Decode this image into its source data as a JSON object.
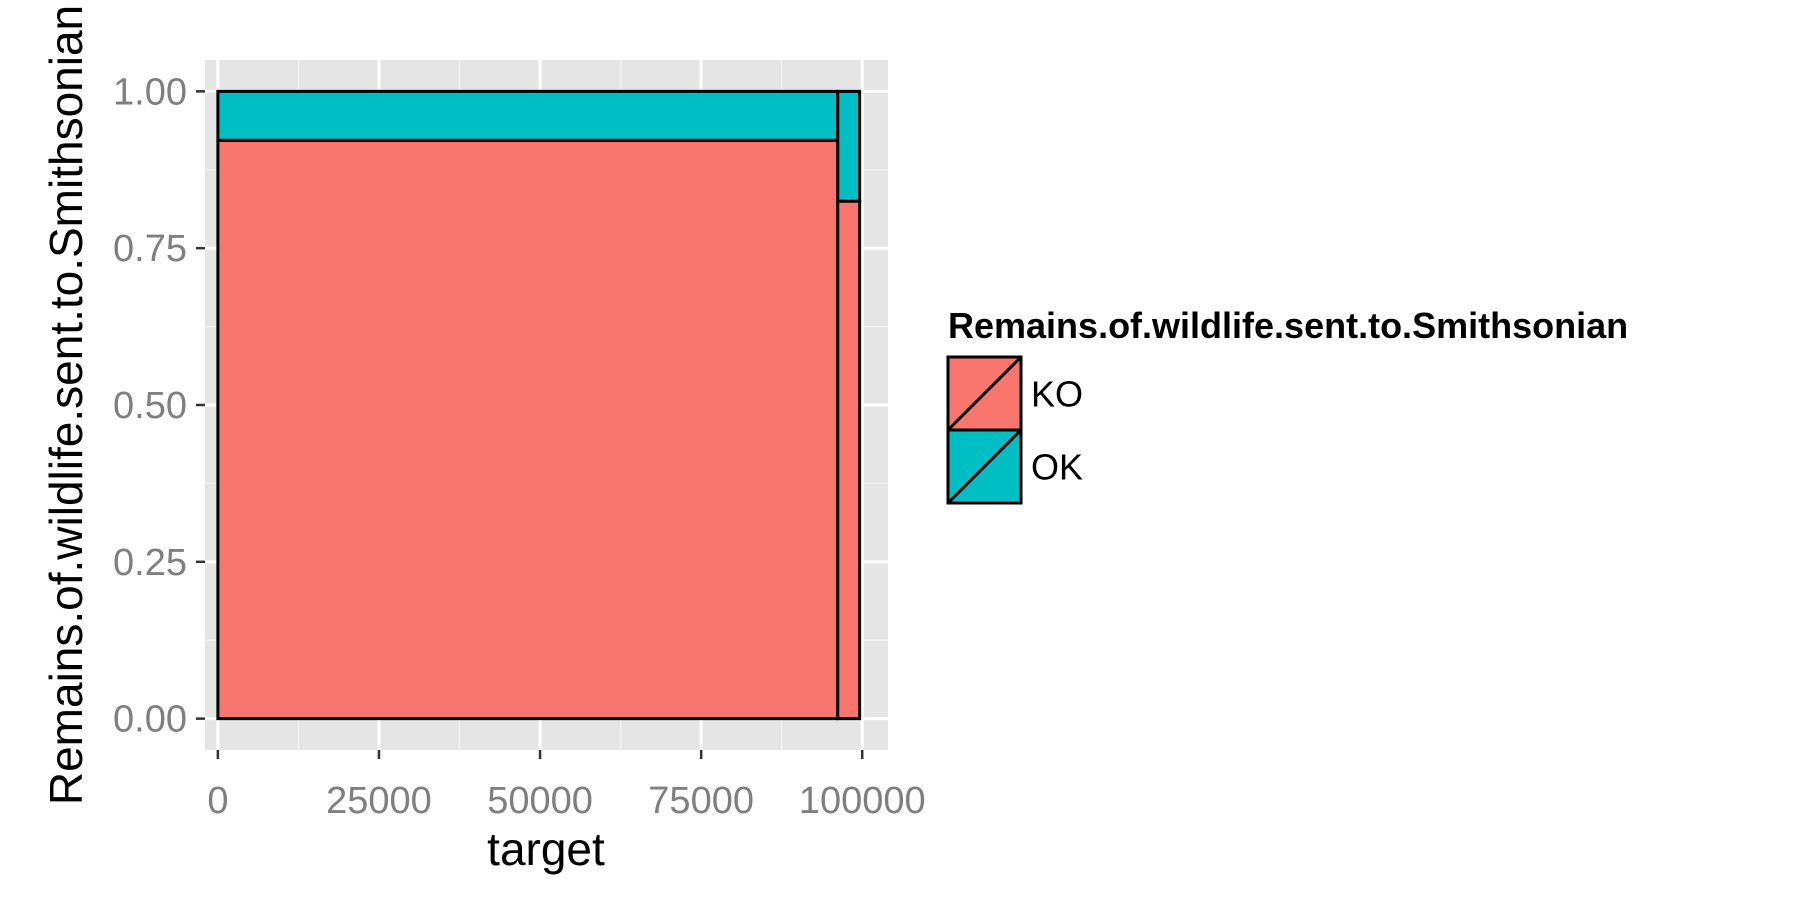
{
  "chart_data": {
    "type": "bar",
    "subtype": "mosaic-stacked-proportion",
    "title": "",
    "xlabel": "target",
    "ylabel": "Remains.of.wildlife.sent.to.Smithsonian",
    "xlim": [
      -2000,
      104000
    ],
    "ylim": [
      -0.05,
      1.05
    ],
    "x_ticks": [
      0,
      25000,
      50000,
      75000,
      100000
    ],
    "x_tick_labels": [
      "0",
      "25000",
      "50000",
      "75000",
      "100000"
    ],
    "y_ticks": [
      0,
      0.25,
      0.5,
      0.75,
      1.0
    ],
    "y_tick_labels": [
      "0.00",
      "0.25",
      "0.50",
      "0.75",
      "1.00"
    ],
    "grid": true,
    "legend": {
      "title": "Remains.of.wildlife.sent.to.Smithsonian",
      "placement": "right",
      "entries": [
        {
          "label": "KO",
          "color": "#F8766D"
        },
        {
          "label": "OK",
          "color": "#00BFC4"
        }
      ]
    },
    "categories": [
      "KO",
      "OK"
    ],
    "bars": [
      {
        "x_start": 0,
        "x_end": 96200,
        "series": [
          {
            "name": "KO",
            "value": 0.922
          },
          {
            "name": "OK",
            "value": 0.078
          }
        ]
      },
      {
        "x_start": 96200,
        "x_end": 99600,
        "series": [
          {
            "name": "KO",
            "value": 0.825
          },
          {
            "name": "OK",
            "value": 0.175
          }
        ]
      }
    ],
    "colors": {
      "KO": "#F8766D",
      "OK": "#00BFC4",
      "panel": "#E5E5E5",
      "grid": "#FFFFFF"
    }
  }
}
